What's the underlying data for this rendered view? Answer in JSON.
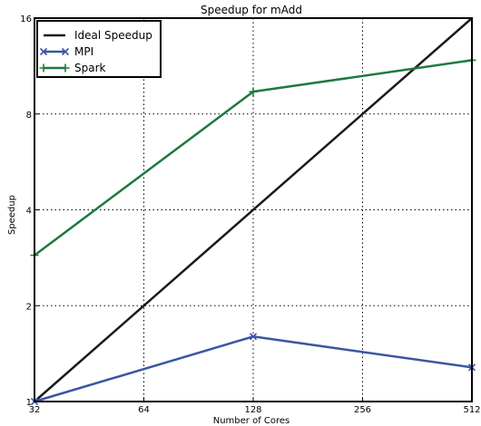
{
  "chart_data": {
    "type": "line",
    "title": "Speedup for mAdd",
    "xlabel": "Number of Cores",
    "ylabel": "Speedup",
    "x_scale": "log2",
    "y_scale": "log2",
    "xlim": [
      32,
      512
    ],
    "ylim": [
      1,
      16
    ],
    "x_ticks": [
      "32",
      "64",
      "128",
      "256",
      "512"
    ],
    "y_ticks": [
      "1",
      "2",
      "4",
      "8",
      "16"
    ],
    "grid": true,
    "legend_position": "top-left",
    "series": [
      {
        "name": "Ideal Speedup",
        "color": "#1a1a1a",
        "marker": "none",
        "x": [
          32,
          512
        ],
        "y": [
          1,
          16
        ]
      },
      {
        "name": "MPI",
        "color": "#3b55a3",
        "marker": "x",
        "x": [
          32,
          128,
          512
        ],
        "y": [
          1.0,
          1.6,
          1.28
        ]
      },
      {
        "name": "Spark",
        "color": "#1b7a3e",
        "marker": "+",
        "x": [
          32,
          128,
          512
        ],
        "y": [
          2.88,
          9.4,
          11.8
        ]
      }
    ]
  }
}
